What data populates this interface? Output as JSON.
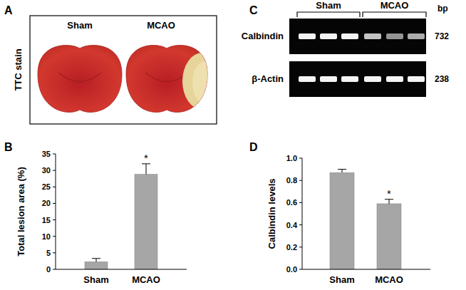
{
  "chart_data": [
    {
      "type": "bar",
      "categories": [
        "Sham",
        "MCAO"
      ],
      "values": [
        2.3,
        28.8
      ],
      "errors": [
        1.0,
        3.2
      ],
      "color": "#a6a6a6",
      "y_label": "Total lesion area (%)",
      "ylim": [
        0,
        35
      ],
      "yticks": [
        0,
        5,
        10,
        15,
        20,
        25,
        30,
        35
      ],
      "annotations": [
        {
          "text": "*",
          "index": 1
        }
      ]
    },
    {
      "type": "bar",
      "categories": [
        "Sham",
        "MCAO"
      ],
      "values": [
        0.87,
        0.59
      ],
      "errors": [
        0.03,
        0.04
      ],
      "color": "#a6a6a6",
      "y_label": "Calbindin levels",
      "ylim": [
        0,
        1
      ],
      "yticks": [
        {
          "value": 0,
          "label": "0.0"
        },
        0.2,
        0.4,
        0.6,
        0.8,
        {
          "value": 1,
          "label": "1.0"
        }
      ],
      "annotations": [
        {
          "text": "*",
          "index": 1
        }
      ]
    }
  ],
  "figure": {
    "panel_labels": [
      "A",
      "B",
      "C",
      "D"
    ],
    "ttc": {
      "label": "TTC stain",
      "columns": [
        "Sham",
        "MCAO"
      ]
    },
    "gel": {
      "groups": [
        "Sham",
        "MCAO"
      ],
      "unit": "bp",
      "rows": [
        {
          "label": "Calbindin",
          "size": 732
        },
        {
          "label": "β-Actin",
          "size": 238
        }
      ]
    }
  }
}
